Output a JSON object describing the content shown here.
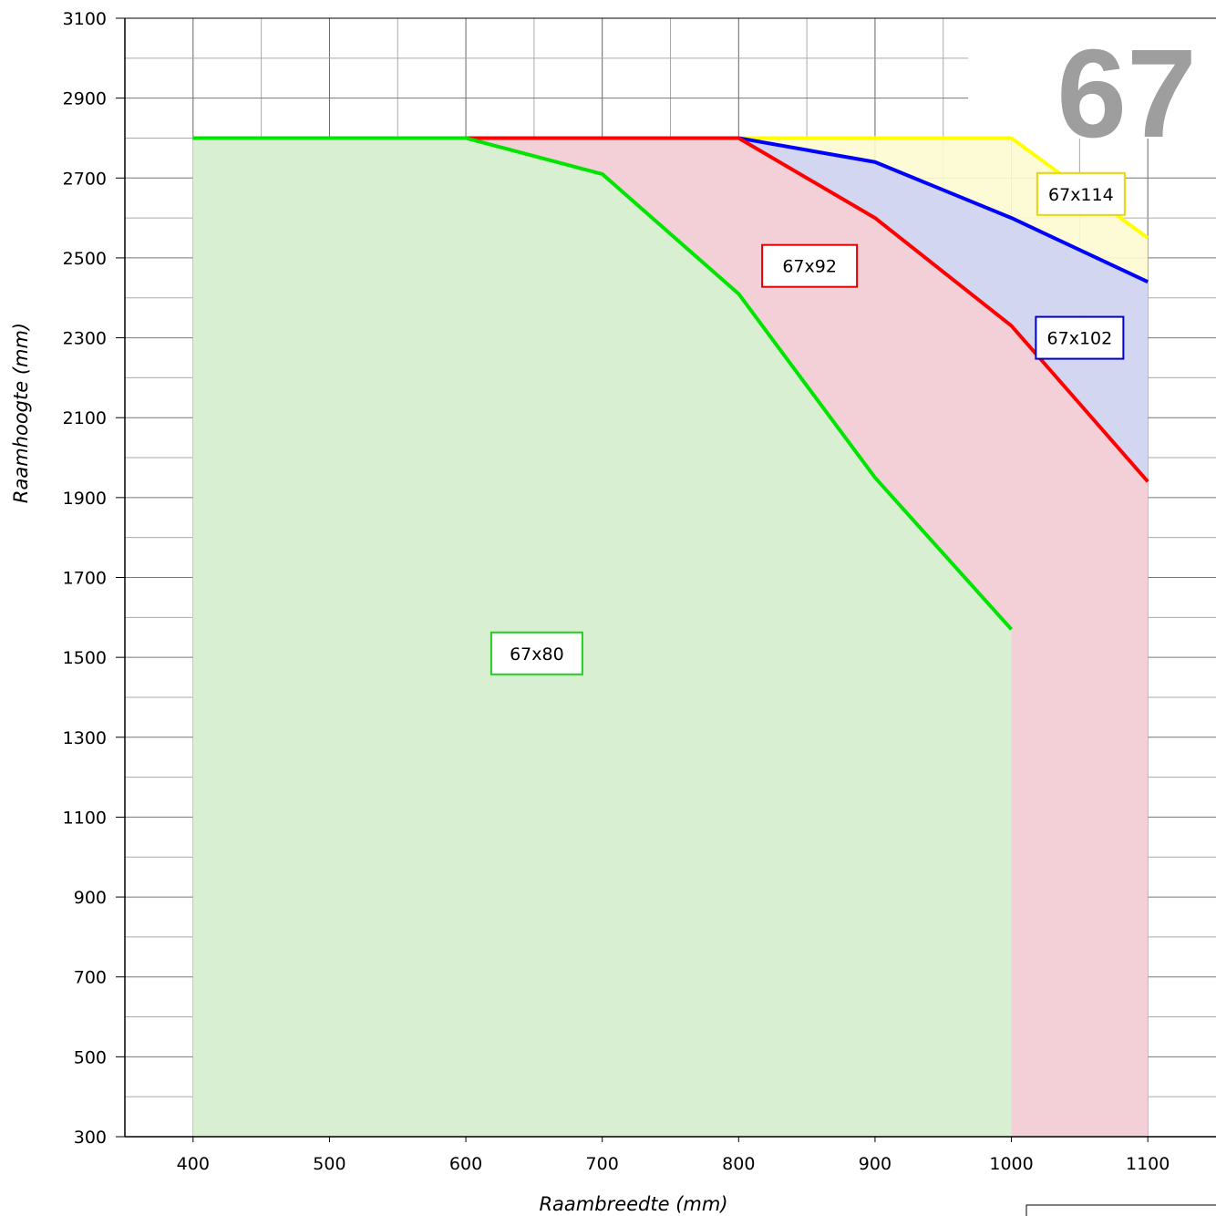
{
  "chart_data": {
    "type": "area",
    "badge": "67",
    "xlabel": "Raambreedte (mm)",
    "ylabel": "Raamhoogte (mm)",
    "xlim": [
      350,
      1150
    ],
    "ylim": [
      300,
      3100
    ],
    "x_ticks": [
      "400",
      "500",
      "600",
      "700",
      "800",
      "900",
      "1000",
      "1100"
    ],
    "y_ticks": [
      "300",
      "500",
      "700",
      "900",
      "1100",
      "1300",
      "1500",
      "1700",
      "1900",
      "2100",
      "2300",
      "2500",
      "2700",
      "2900",
      "3100"
    ],
    "grid": true,
    "series": [
      {
        "name": "67x114",
        "color": "#ffff00",
        "fill": "#fdfbd0",
        "x": [
          400,
          500,
          600,
          700,
          800,
          900,
          1000,
          1100
        ],
        "y": [
          2800,
          2800,
          2800,
          2800,
          2800,
          2800,
          2800,
          2550
        ]
      },
      {
        "name": "67x102",
        "color": "#0000ff",
        "fill": "#cdd2f3",
        "x": [
          400,
          500,
          600,
          700,
          800,
          900,
          1000,
          1100
        ],
        "y": [
          2800,
          2800,
          2800,
          2800,
          2800,
          2740,
          2600,
          2440
        ]
      },
      {
        "name": "67x92",
        "color": "#ff0000",
        "fill": "#f6cfd4",
        "x": [
          400,
          500,
          600,
          700,
          800,
          900,
          1000,
          1100
        ],
        "y": [
          2800,
          2800,
          2800,
          2800,
          2800,
          2600,
          2330,
          1940
        ]
      },
      {
        "name": "67x80",
        "color": "#00e400",
        "fill": "#d5f3d0",
        "x": [
          400,
          500,
          600,
          700,
          800,
          900,
          1000
        ],
        "y": [
          2800,
          2800,
          2800,
          2710,
          2410,
          1950,
          1570
        ]
      }
    ],
    "labels": [
      {
        "text": "67x114",
        "border": "#e6d800",
        "x": 1051,
        "y": 2660
      },
      {
        "text": "67x102",
        "border": "#0000cc",
        "x": 1050,
        "y": 2300
      },
      {
        "text": "67x92",
        "border": "#e00000",
        "x": 852,
        "y": 2480
      },
      {
        "text": "67x80",
        "border": "#22cc22",
        "x": 652,
        "y": 1510
      }
    ]
  }
}
